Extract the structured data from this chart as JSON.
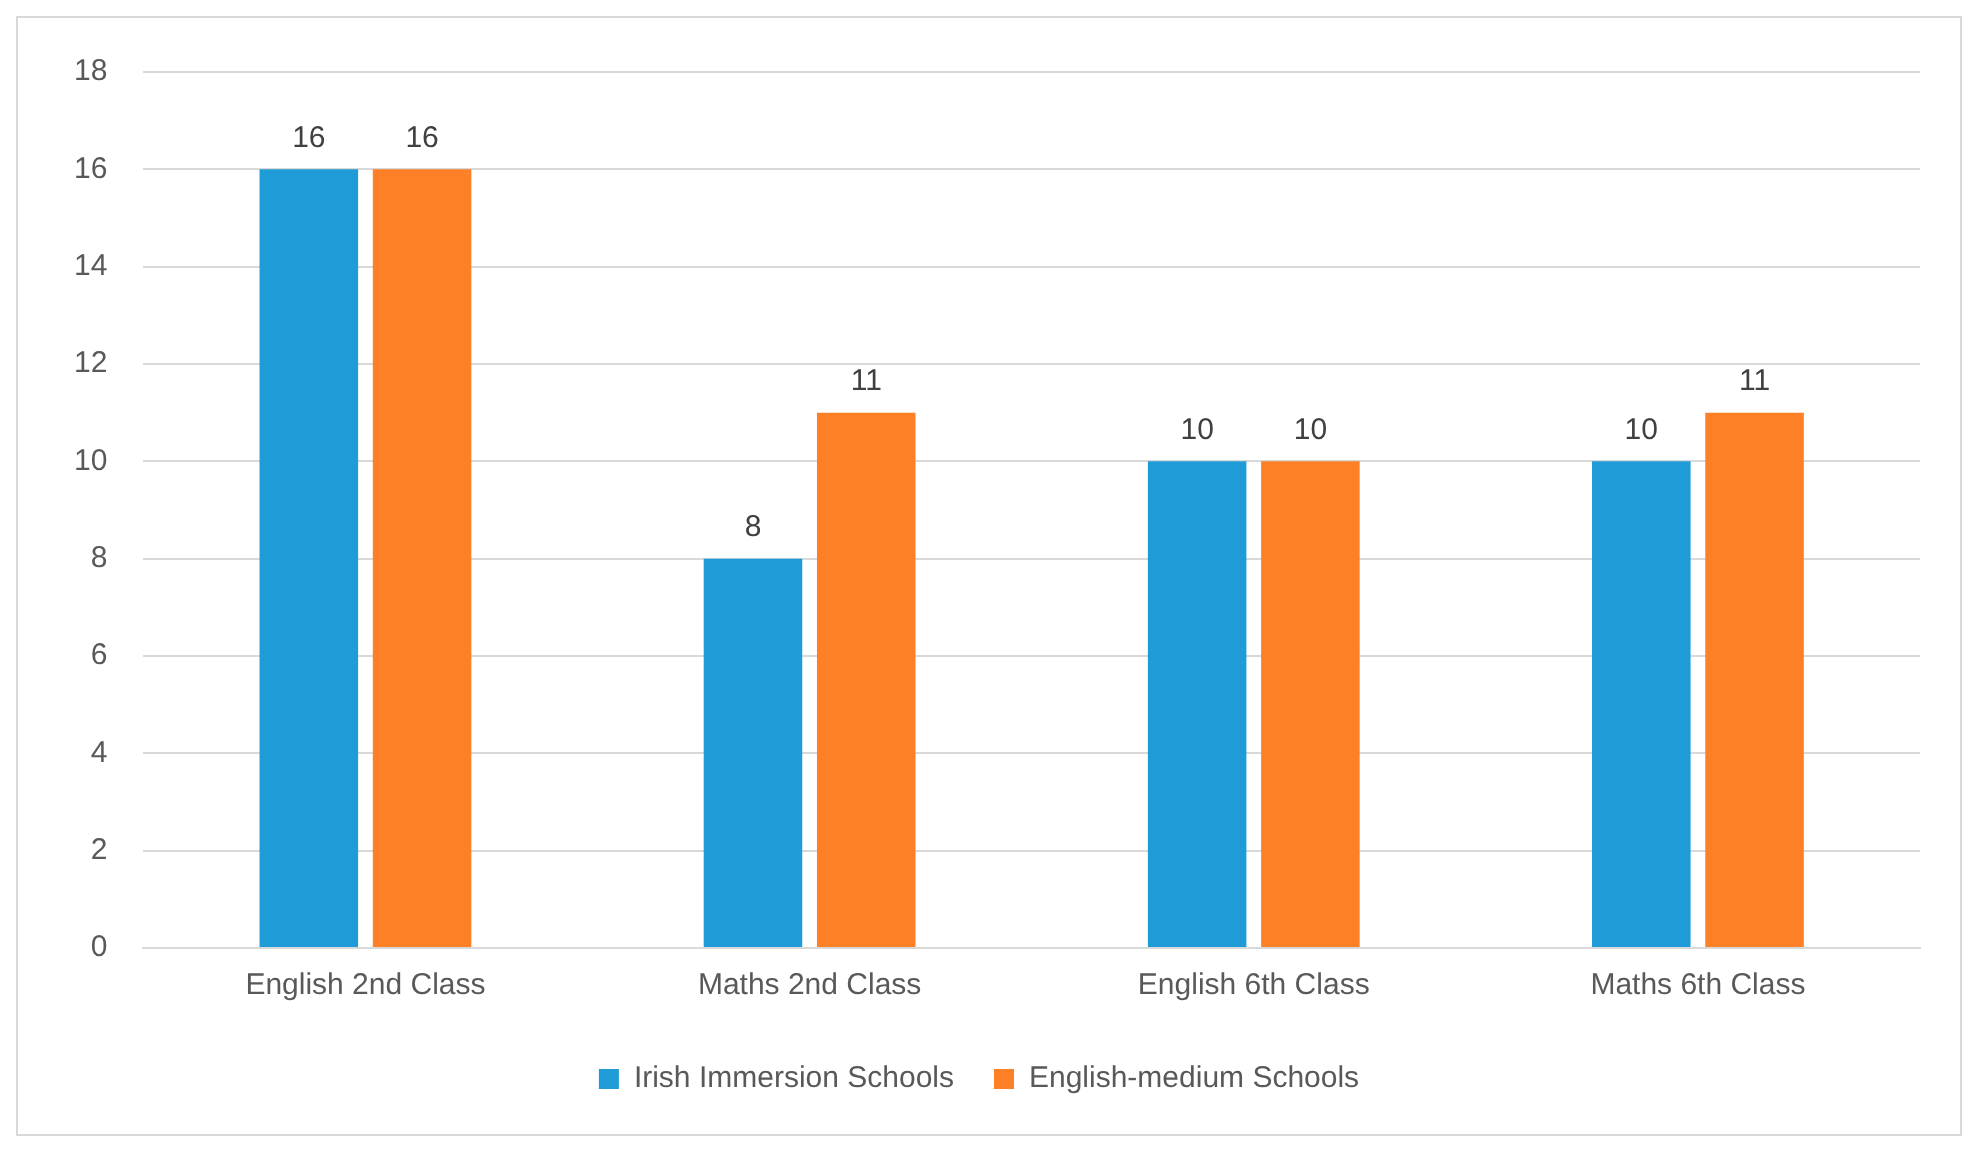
{
  "chart_data": {
    "type": "bar",
    "categories": [
      "English 2nd Class",
      "Maths 2nd Class",
      "English 6th Class",
      "Maths 6th Class"
    ],
    "series": [
      {
        "name": "Irish Immersion Schools",
        "color": "#1f9bd7",
        "values": [
          16,
          8,
          10,
          10
        ]
      },
      {
        "name": "English-medium Schools",
        "color": "#fd7f26",
        "values": [
          16,
          11,
          10,
          11
        ]
      }
    ],
    "ylim": [
      0,
      18
    ],
    "yticks": [
      0,
      2,
      4,
      6,
      8,
      10,
      12,
      14,
      16,
      18
    ],
    "grid": "y",
    "legend": "bottom",
    "data_labels": true
  }
}
